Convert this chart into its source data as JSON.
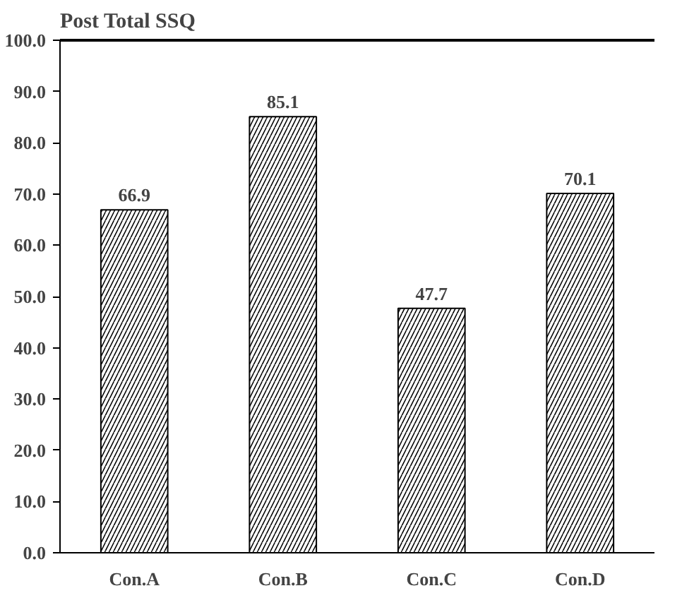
{
  "chart_data": {
    "type": "bar",
    "title": "Post Total SSQ",
    "categories": [
      "Con.A",
      "Con.B",
      "Con.C",
      "Con.D"
    ],
    "values": [
      66.9,
      85.1,
      47.7,
      70.1
    ],
    "color": "#ffffff",
    "ylim": [
      0,
      100
    ],
    "yticks": [
      {
        "value": 0,
        "label": "0.0"
      },
      {
        "value": 10,
        "label": "10.0"
      },
      {
        "value": 20,
        "label": "20.0"
      },
      {
        "value": 30,
        "label": "30.0"
      },
      {
        "value": 40,
        "label": "40.0"
      },
      {
        "value": 50,
        "label": "50.0"
      },
      {
        "value": 60,
        "label": "60.0"
      },
      {
        "value": 70,
        "label": "70.0"
      },
      {
        "value": 80,
        "label": "80.0"
      },
      {
        "value": 90,
        "label": "90.0"
      },
      {
        "value": 100,
        "label": "100.0"
      }
    ],
    "data_labels": true,
    "grid": false
  }
}
